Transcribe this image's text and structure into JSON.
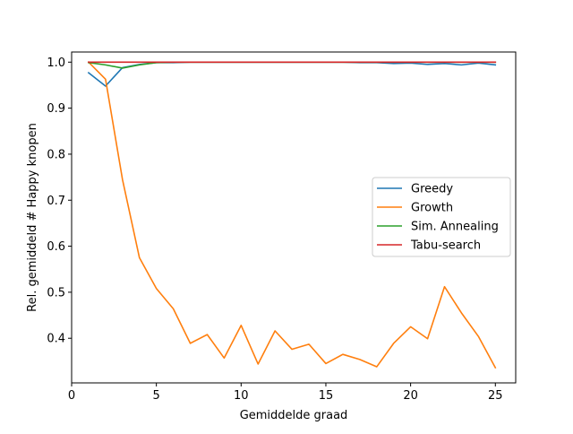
{
  "chart_data": {
    "type": "line",
    "xlabel": "Gemiddelde graad",
    "ylabel": "Rel. gemiddeld # Happy knopen",
    "xlim": [
      0,
      26.2
    ],
    "ylim": [
      0.303,
      1.022
    ],
    "xticks": [
      0,
      5,
      10,
      15,
      20,
      25
    ],
    "yticks": [
      0.4,
      0.5,
      0.6,
      0.7,
      0.8,
      0.9,
      1.0
    ],
    "ytick_labels": [
      "0.4",
      "0.5",
      "0.6",
      "0.7",
      "0.8",
      "0.9",
      "1.0"
    ],
    "legend_position": "center-right",
    "x": [
      1,
      2,
      3,
      4,
      5,
      6,
      7,
      8,
      9,
      10,
      11,
      12,
      13,
      14,
      15,
      16,
      17,
      18,
      19,
      20,
      21,
      22,
      23,
      24,
      25
    ],
    "series": [
      {
        "name": "Greedy",
        "color": "#1f77b4",
        "values": [
          0.977,
          0.948,
          0.988,
          0.995,
          0.999,
          0.999,
          1.0,
          1.0,
          1.0,
          1.0,
          1.0,
          1.0,
          1.0,
          1.0,
          1.0,
          1.0,
          0.999,
          0.999,
          0.997,
          0.998,
          0.995,
          0.997,
          0.994,
          0.998,
          0.994
        ]
      },
      {
        "name": "Growth",
        "color": "#ff7f0e",
        "values": [
          1.0,
          0.963,
          0.745,
          0.575,
          0.508,
          0.464,
          0.389,
          0.408,
          0.357,
          0.428,
          0.344,
          0.416,
          0.376,
          0.387,
          0.345,
          0.365,
          0.354,
          0.338,
          0.389,
          0.425,
          0.399,
          0.512,
          0.455,
          0.404,
          0.336
        ]
      },
      {
        "name": "Sim. Annealing",
        "color": "#2ca02c",
        "values": [
          0.999,
          0.994,
          0.987,
          0.994,
          0.999,
          1.0,
          1.0,
          1.0,
          1.0,
          1.0,
          1.0,
          1.0,
          1.0,
          1.0,
          1.0,
          1.0,
          1.0,
          1.0,
          1.0,
          1.0,
          1.0,
          1.0,
          1.0,
          1.0,
          1.0
        ]
      },
      {
        "name": "Tabu-search",
        "color": "#d62728",
        "values": [
          1.0,
          1.0,
          1.0,
          1.0,
          1.0,
          1.0,
          1.0,
          1.0,
          1.0,
          1.0,
          1.0,
          1.0,
          1.0,
          1.0,
          1.0,
          1.0,
          1.0,
          1.0,
          1.0,
          1.0,
          1.0,
          1.0,
          1.0,
          1.0,
          1.0
        ]
      }
    ]
  }
}
